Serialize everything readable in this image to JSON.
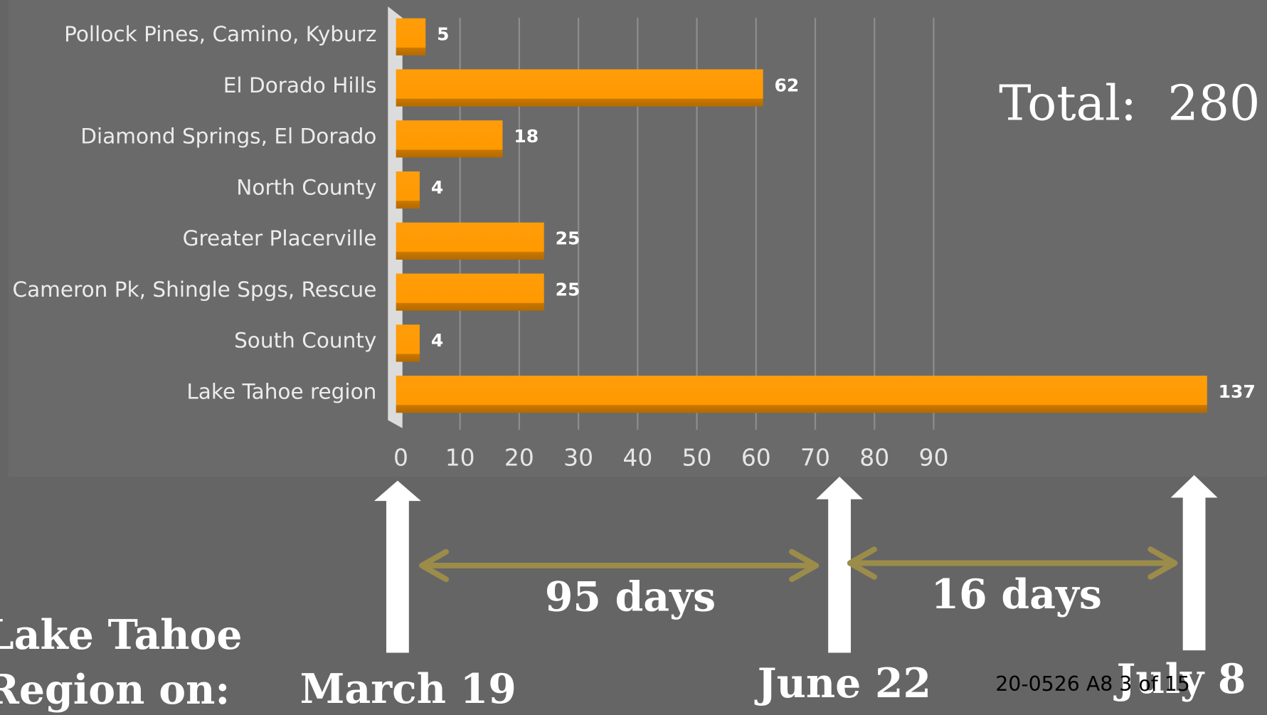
{
  "chart_data": {
    "type": "bar",
    "orientation": "horizontal",
    "categories": [
      "Pollock Pines, Camino, Kyburz",
      "El Dorado Hills",
      "Diamond Springs, El Dorado",
      "North County",
      "Greater Placerville",
      "Cameron Pk, Shingle Spgs, Rescue",
      "South County",
      "Lake Tahoe region"
    ],
    "values": [
      5,
      62,
      18,
      4,
      25,
      25,
      4,
      137
    ],
    "color": "#ff9900",
    "xlim": [
      0,
      140
    ],
    "xticks": [
      0,
      10,
      20,
      30,
      40,
      50,
      60,
      70,
      80,
      90
    ],
    "grid": true
  },
  "annotations": {
    "total": "Total:  280",
    "intervals": [
      "95 days",
      "16 days"
    ],
    "dates": [
      "March 19",
      "June 22",
      "July 8"
    ],
    "side_label": [
      "Lake Tahoe",
      "Region on:"
    ],
    "footer": "20-0526 A8 3 of 15"
  }
}
